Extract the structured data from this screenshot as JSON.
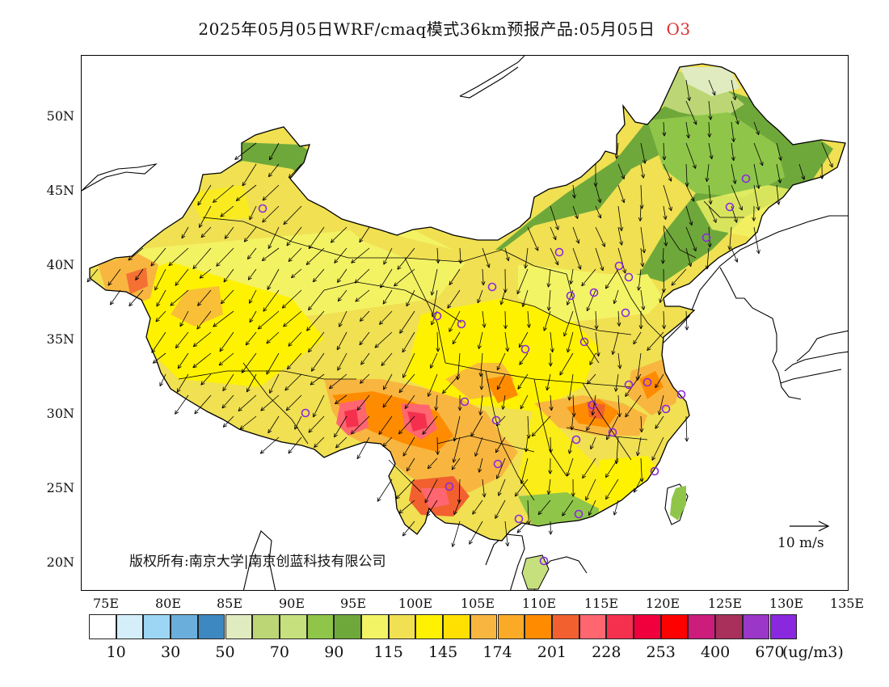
{
  "title": {
    "text": "2025年05月05日WRF/cmaq模式36km预报产品:05月05日",
    "pollutant": "O3",
    "pollutant_color": "#e03030"
  },
  "axes": {
    "lat_labels": [
      "50N",
      "45N",
      "40N",
      "35N",
      "30N",
      "25N",
      "20N"
    ],
    "lon_labels": [
      "75E",
      "80E",
      "85E",
      "90E",
      "95E",
      "100E",
      "105E",
      "110E",
      "115E",
      "120E",
      "125E",
      "130E",
      "135E"
    ]
  },
  "copyright": "版权所有:南京大学|南京创蓝科技有限公司",
  "wind_scale_label": "10 m/s",
  "legend": {
    "units": "(ug/m3)",
    "colors": [
      "#ffffff",
      "#d4eefa",
      "#9dd6f4",
      "#6aafdc",
      "#3d88c0",
      "#e0ebc0",
      "#bcd675",
      "#c7e07e",
      "#8fc64a",
      "#6fa83a",
      "#f3f465",
      "#f0e052",
      "#fff200",
      "#ffe000",
      "#f8b640",
      "#fbaa28",
      "#ff8c00",
      "#f26030",
      "#ff6670",
      "#f5304f",
      "#f0003c",
      "#ff0000",
      "#cc1c7c",
      "#a8305a",
      "#9a36c8",
      "#8a28e0"
    ],
    "ticks": [
      "10",
      "30",
      "50",
      "70",
      "90",
      "115",
      "145",
      "174",
      "201",
      "228",
      "253",
      "400",
      "670"
    ]
  },
  "cities": [
    "urumqi",
    "lhasa",
    "beijing",
    "shanghai",
    "guangzhou",
    "chengdu",
    "harbin",
    "changchun"
  ]
}
